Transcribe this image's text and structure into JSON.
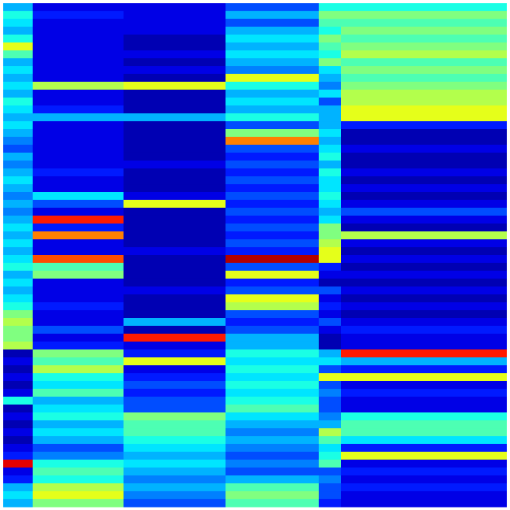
{
  "chart_data": {
    "type": "heatmap",
    "colormap": "jet",
    "zlim": [
      0,
      1
    ],
    "values": [
      [
        0.3,
        0.1,
        0.1,
        0.2,
        0.4,
        0.4
      ],
      [
        0.4,
        0.15,
        0.1,
        0.3,
        0.5,
        0.5
      ],
      [
        0.35,
        0.1,
        0.1,
        0.2,
        0.45,
        0.45
      ],
      [
        0.3,
        0.1,
        0.1,
        0.3,
        0.4,
        0.5
      ],
      [
        0.4,
        0.1,
        0.05,
        0.35,
        0.5,
        0.45
      ],
      [
        0.6,
        0.1,
        0.05,
        0.3,
        0.45,
        0.5
      ],
      [
        0.45,
        0.1,
        0.1,
        0.35,
        0.4,
        0.55
      ],
      [
        0.3,
        0.1,
        0.05,
        0.3,
        0.5,
        0.45
      ],
      [
        0.35,
        0.1,
        0.1,
        0.25,
        0.35,
        0.5
      ],
      [
        0.3,
        0.1,
        0.05,
        0.6,
        0.3,
        0.45
      ],
      [
        0.35,
        0.55,
        0.6,
        0.4,
        0.25,
        0.5
      ],
      [
        0.3,
        0.1,
        0.05,
        0.3,
        0.35,
        0.55
      ],
      [
        0.4,
        0.1,
        0.05,
        0.35,
        0.2,
        0.55
      ],
      [
        0.35,
        0.15,
        0.05,
        0.3,
        0.3,
        0.6
      ],
      [
        0.3,
        0.3,
        0.3,
        0.4,
        0.3,
        0.6
      ],
      [
        0.35,
        0.1,
        0.05,
        0.2,
        0.3,
        0.15
      ],
      [
        0.3,
        0.1,
        0.05,
        0.5,
        0.35,
        0.05
      ],
      [
        0.25,
        0.1,
        0.05,
        0.75,
        0.3,
        0.05
      ],
      [
        0.2,
        0.1,
        0.05,
        0.2,
        0.35,
        0.1
      ],
      [
        0.3,
        0.1,
        0.05,
        0.15,
        0.4,
        0.05
      ],
      [
        0.25,
        0.1,
        0.1,
        0.2,
        0.3,
        0.05
      ],
      [
        0.3,
        0.15,
        0.05,
        0.15,
        0.4,
        0.1
      ],
      [
        0.35,
        0.1,
        0.05,
        0.2,
        0.35,
        0.05
      ],
      [
        0.3,
        0.1,
        0.05,
        0.15,
        0.35,
        0.1
      ],
      [
        0.25,
        0.35,
        0.1,
        0.2,
        0.4,
        0.05
      ],
      [
        0.3,
        0.2,
        0.6,
        0.15,
        0.35,
        0.1
      ],
      [
        0.25,
        0.1,
        0.05,
        0.2,
        0.3,
        0.2
      ],
      [
        0.3,
        0.85,
        0.05,
        0.15,
        0.35,
        0.1
      ],
      [
        0.35,
        0.15,
        0.05,
        0.2,
        0.5,
        0.05
      ],
      [
        0.3,
        0.75,
        0.05,
        0.15,
        0.5,
        0.55
      ],
      [
        0.35,
        0.1,
        0.05,
        0.2,
        0.55,
        0.1
      ],
      [
        0.3,
        0.1,
        0.1,
        0.15,
        0.6,
        0.05
      ],
      [
        0.35,
        0.8,
        0.05,
        0.95,
        0.6,
        0.1
      ],
      [
        0.4,
        0.45,
        0.05,
        0.2,
        0.15,
        0.05
      ],
      [
        0.3,
        0.5,
        0.05,
        0.6,
        0.1,
        0.1
      ],
      [
        0.35,
        0.1,
        0.05,
        0.15,
        0.05,
        0.05
      ],
      [
        0.3,
        0.1,
        0.1,
        0.2,
        0.2,
        0.1
      ],
      [
        0.35,
        0.1,
        0.05,
        0.6,
        0.1,
        0.05
      ],
      [
        0.4,
        0.15,
        0.05,
        0.55,
        0.15,
        0.1
      ],
      [
        0.5,
        0.1,
        0.05,
        0.2,
        0.1,
        0.05
      ],
      [
        0.55,
        0.1,
        0.3,
        0.15,
        0.2,
        0.1
      ],
      [
        0.5,
        0.2,
        0.05,
        0.2,
        0.1,
        0.15
      ],
      [
        0.5,
        0.1,
        0.85,
        0.3,
        0.05,
        0.1
      ],
      [
        0.55,
        0.15,
        0.1,
        0.3,
        0.05,
        0.1
      ],
      [
        0.05,
        0.5,
        0.15,
        0.4,
        0.3,
        0.85
      ],
      [
        0.1,
        0.45,
        0.6,
        0.35,
        0.35,
        0.3
      ],
      [
        0.05,
        0.55,
        0.1,
        0.4,
        0.2,
        0.15
      ],
      [
        0.1,
        0.4,
        0.15,
        0.35,
        0.6,
        0.6
      ],
      [
        0.05,
        0.35,
        0.2,
        0.4,
        0.2,
        0.1
      ],
      [
        0.1,
        0.45,
        0.15,
        0.35,
        0.25,
        0.15
      ],
      [
        0.4,
        0.3,
        0.2,
        0.4,
        0.2,
        0.1
      ],
      [
        0.05,
        0.35,
        0.2,
        0.45,
        0.2,
        0.1
      ],
      [
        0.1,
        0.4,
        0.5,
        0.35,
        0.25,
        0.4
      ],
      [
        0.05,
        0.3,
        0.45,
        0.3,
        0.3,
        0.45
      ],
      [
        0.1,
        0.35,
        0.45,
        0.25,
        0.55,
        0.45
      ],
      [
        0.05,
        0.3,
        0.4,
        0.3,
        0.45,
        0.35
      ],
      [
        0.1,
        0.2,
        0.35,
        0.25,
        0.35,
        0.15
      ],
      [
        0.15,
        0.25,
        0.3,
        0.2,
        0.4,
        0.6
      ],
      [
        0.9,
        0.4,
        0.35,
        0.25,
        0.45,
        0.1
      ],
      [
        0.1,
        0.45,
        0.3,
        0.2,
        0.2,
        0.15
      ],
      [
        0.15,
        0.4,
        0.25,
        0.3,
        0.25,
        0.1
      ],
      [
        0.3,
        0.55,
        0.3,
        0.45,
        0.2,
        0.15
      ],
      [
        0.35,
        0.6,
        0.25,
        0.5,
        0.2,
        0.1
      ],
      [
        0.3,
        0.5,
        0.2,
        0.45,
        0.15,
        0.1
      ]
    ]
  }
}
